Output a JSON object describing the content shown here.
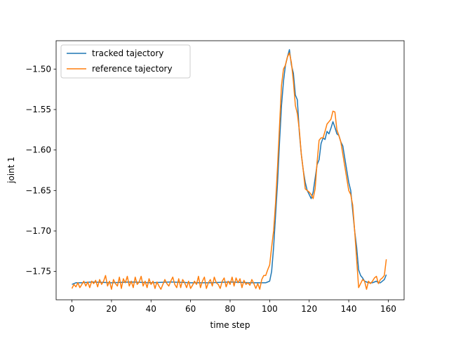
{
  "chart_data": {
    "type": "line",
    "title": "",
    "xlabel": "time step",
    "ylabel": "joint 1",
    "xlim": [
      -8,
      168
    ],
    "ylim": [
      -1.785,
      -1.465
    ],
    "xticks": [
      0,
      20,
      40,
      60,
      80,
      100,
      120,
      140,
      160
    ],
    "yticks": [
      -1.75,
      -1.7,
      -1.65,
      -1.6,
      -1.55,
      -1.5
    ],
    "ytick_labels": [
      "−1.75",
      "−1.70",
      "−1.65",
      "−1.60",
      "−1.55",
      "−1.50"
    ],
    "grid": false,
    "legend_position": "top-left",
    "series": [
      {
        "name": "tracked tajectory",
        "color": "#1f77b4",
        "x": [
          0,
          2,
          5,
          10,
          20,
          30,
          40,
          50,
          60,
          70,
          80,
          90,
          94,
          96,
          97,
          98,
          99,
          100,
          101,
          102,
          103,
          104,
          105,
          106,
          107,
          108,
          109,
          110,
          111,
          112,
          113,
          114,
          115,
          116,
          117,
          118,
          119,
          120,
          121,
          122,
          123,
          124,
          125,
          126,
          127,
          128,
          129,
          130,
          131,
          132,
          133,
          134,
          135,
          136,
          137,
          138,
          139,
          140,
          141,
          142,
          143,
          144,
          145,
          146,
          147,
          148,
          149,
          150,
          151,
          152,
          153,
          154,
          155,
          156,
          157,
          158,
          159
        ],
        "y": [
          -1.766,
          -1.764,
          -1.764,
          -1.763,
          -1.764,
          -1.763,
          -1.764,
          -1.763,
          -1.764,
          -1.764,
          -1.763,
          -1.764,
          -1.764,
          -1.764,
          -1.764,
          -1.764,
          -1.763,
          -1.762,
          -1.75,
          -1.72,
          -1.68,
          -1.64,
          -1.59,
          -1.545,
          -1.515,
          -1.495,
          -1.485,
          -1.476,
          -1.495,
          -1.505,
          -1.532,
          -1.538,
          -1.578,
          -1.605,
          -1.625,
          -1.64,
          -1.65,
          -1.655,
          -1.66,
          -1.652,
          -1.635,
          -1.618,
          -1.612,
          -1.592,
          -1.585,
          -1.587,
          -1.577,
          -1.58,
          -1.573,
          -1.565,
          -1.572,
          -1.58,
          -1.582,
          -1.59,
          -1.595,
          -1.61,
          -1.625,
          -1.64,
          -1.65,
          -1.675,
          -1.7,
          -1.72,
          -1.748,
          -1.755,
          -1.758,
          -1.762,
          -1.763,
          -1.764,
          -1.764,
          -1.764,
          -1.763,
          -1.762,
          -1.764,
          -1.764,
          -1.762,
          -1.76,
          -1.754
        ]
      },
      {
        "name": "reference tajectory",
        "color": "#ff7f0e",
        "x": [
          0,
          1,
          2,
          3,
          4,
          5,
          6,
          7,
          8,
          9,
          10,
          11,
          12,
          13,
          14,
          15,
          16,
          17,
          18,
          19,
          20,
          21,
          22,
          23,
          24,
          25,
          26,
          27,
          28,
          29,
          30,
          31,
          32,
          33,
          34,
          35,
          36,
          37,
          38,
          39,
          40,
          41,
          42,
          43,
          44,
          45,
          46,
          47,
          48,
          49,
          50,
          51,
          52,
          53,
          54,
          55,
          56,
          57,
          58,
          59,
          60,
          61,
          62,
          63,
          64,
          65,
          66,
          67,
          68,
          69,
          70,
          71,
          72,
          73,
          74,
          75,
          76,
          77,
          78,
          79,
          80,
          81,
          82,
          83,
          84,
          85,
          86,
          87,
          88,
          89,
          90,
          91,
          92,
          93,
          94,
          95,
          96,
          97,
          98,
          99,
          100,
          101,
          102,
          103,
          104,
          105,
          106,
          107,
          108,
          109,
          110,
          111,
          112,
          113,
          114,
          115,
          116,
          117,
          118,
          119,
          120,
          121,
          122,
          123,
          124,
          125,
          126,
          127,
          128,
          129,
          130,
          131,
          132,
          133,
          134,
          135,
          136,
          137,
          138,
          139,
          140,
          141,
          142,
          143,
          144,
          145,
          146,
          147,
          148,
          149,
          150,
          151,
          152,
          153,
          154,
          155,
          156,
          157,
          158,
          159
        ],
        "y": [
          -1.771,
          -1.766,
          -1.769,
          -1.764,
          -1.77,
          -1.766,
          -1.762,
          -1.768,
          -1.763,
          -1.77,
          -1.762,
          -1.765,
          -1.761,
          -1.769,
          -1.76,
          -1.766,
          -1.762,
          -1.755,
          -1.768,
          -1.762,
          -1.772,
          -1.76,
          -1.765,
          -1.768,
          -1.757,
          -1.771,
          -1.759,
          -1.764,
          -1.756,
          -1.768,
          -1.762,
          -1.77,
          -1.757,
          -1.766,
          -1.763,
          -1.756,
          -1.768,
          -1.762,
          -1.77,
          -1.759,
          -1.766,
          -1.762,
          -1.771,
          -1.763,
          -1.768,
          -1.772,
          -1.766,
          -1.76,
          -1.765,
          -1.768,
          -1.762,
          -1.757,
          -1.766,
          -1.77,
          -1.759,
          -1.77,
          -1.76,
          -1.764,
          -1.77,
          -1.762,
          -1.771,
          -1.767,
          -1.762,
          -1.766,
          -1.756,
          -1.77,
          -1.762,
          -1.757,
          -1.771,
          -1.764,
          -1.76,
          -1.768,
          -1.757,
          -1.764,
          -1.766,
          -1.771,
          -1.762,
          -1.758,
          -1.769,
          -1.762,
          -1.766,
          -1.757,
          -1.768,
          -1.758,
          -1.764,
          -1.759,
          -1.77,
          -1.761,
          -1.766,
          -1.764,
          -1.767,
          -1.76,
          -1.765,
          -1.771,
          -1.765,
          -1.772,
          -1.76,
          -1.755,
          -1.755,
          -1.748,
          -1.742,
          -1.72,
          -1.7,
          -1.665,
          -1.62,
          -1.57,
          -1.52,
          -1.5,
          -1.495,
          -1.485,
          -1.48,
          -1.492,
          -1.515,
          -1.545,
          -1.555,
          -1.575,
          -1.605,
          -1.625,
          -1.648,
          -1.65,
          -1.652,
          -1.655,
          -1.66,
          -1.648,
          -1.615,
          -1.588,
          -1.585,
          -1.585,
          -1.577,
          -1.568,
          -1.565,
          -1.562,
          -1.552,
          -1.553,
          -1.575,
          -1.582,
          -1.59,
          -1.605,
          -1.62,
          -1.635,
          -1.65,
          -1.655,
          -1.668,
          -1.7,
          -1.735,
          -1.77,
          -1.765,
          -1.76,
          -1.762,
          -1.772,
          -1.762,
          -1.765,
          -1.762,
          -1.758,
          -1.756,
          -1.765,
          -1.76,
          -1.758,
          -1.755,
          -1.735
        ]
      }
    ]
  }
}
